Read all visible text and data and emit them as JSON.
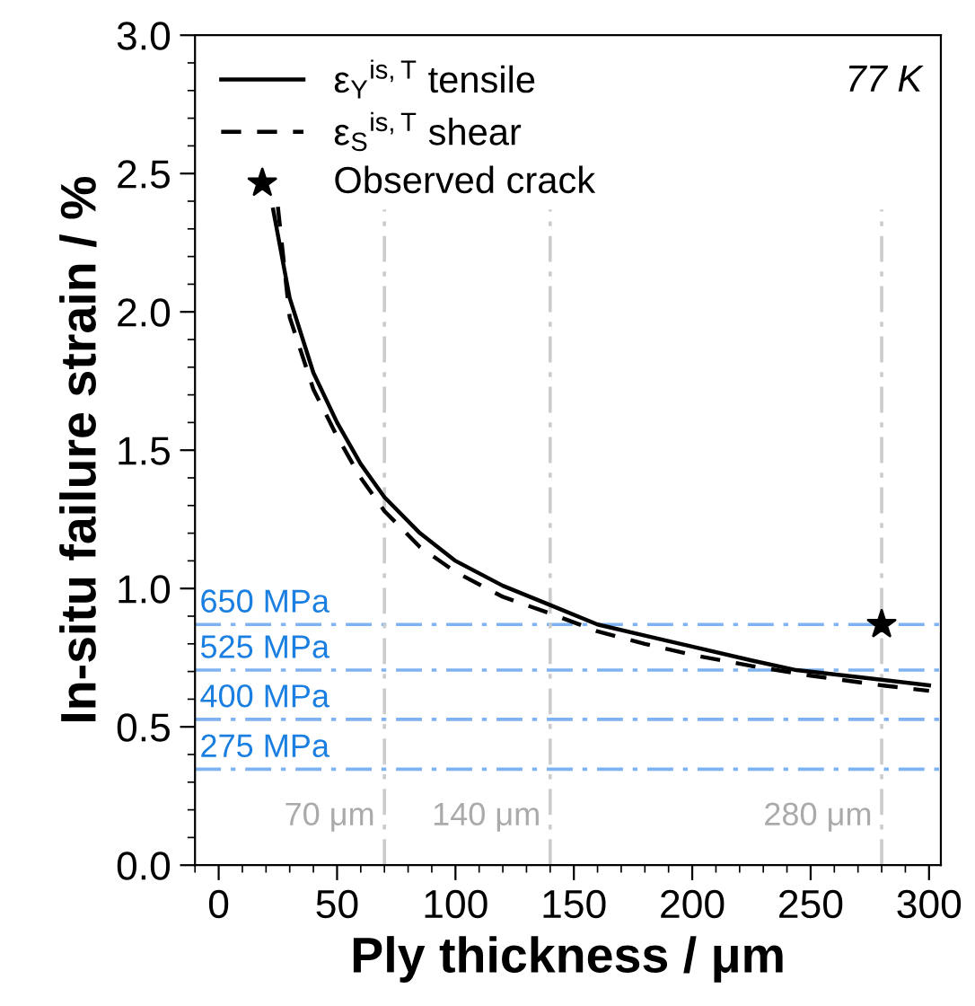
{
  "chart_data": {
    "type": "line",
    "xlabel": "Ply thickness / μm",
    "ylabel": "In-situ failure strain / %",
    "xlim": [
      -10,
      305
    ],
    "xticks": [
      0,
      50,
      100,
      150,
      200,
      250,
      300
    ],
    "ylim": [
      0,
      3.0
    ],
    "yticks": [
      {
        "value": 0,
        "label": "0.0"
      },
      0.5,
      {
        "value": 1,
        "label": "1.0"
      },
      1.5,
      {
        "value": 2,
        "label": "2.0"
      },
      2.5,
      {
        "value": 3,
        "label": "3.0"
      }
    ],
    "grid": false,
    "legend": "top left",
    "annotations": [
      "77 K"
    ],
    "series": [
      {
        "name": "ε$_{Y}$$^{is,T}$ tensile",
        "color": "#000000",
        "line_style": "solid",
        "marker": "none",
        "x": [
          23,
          30,
          40,
          50,
          60,
          70,
          85,
          100,
          120,
          140,
          160,
          180,
          200,
          225,
          244,
          270,
          300
        ],
        "values": [
          2.37,
          2.05,
          1.78,
          1.6,
          1.45,
          1.33,
          1.2,
          1.1,
          1.01,
          0.94,
          0.87,
          0.83,
          0.79,
          0.74,
          0.705,
          0.68,
          0.65
        ]
      },
      {
        "name": "ε$_{S}$$^{is,T}$ shear",
        "color": "#000000",
        "line_style": "dashed",
        "marker": "none",
        "x": [
          25,
          30,
          40,
          50,
          60,
          70,
          85,
          100,
          120,
          140,
          160,
          180,
          200,
          225,
          250,
          280,
          300
        ],
        "values": [
          2.38,
          1.98,
          1.72,
          1.55,
          1.4,
          1.28,
          1.15,
          1.06,
          0.97,
          0.91,
          0.845,
          0.8,
          0.76,
          0.72,
          0.685,
          0.65,
          0.63
        ]
      },
      {
        "name": "Observed crack",
        "type": "scatter",
        "color": "#000000",
        "marker": "star",
        "x": [
          280
        ],
        "values": [
          0.87
        ]
      }
    ],
    "ref_lines": [
      {
        "axis": "y",
        "value": 0.87,
        "label": "650 MPa",
        "color": "#7fb2f0",
        "line_style": "dashdot"
      },
      {
        "axis": "y",
        "value": 0.705,
        "label": "525 MPa",
        "color": "#7fb2f0",
        "line_style": "dashdot"
      },
      {
        "axis": "y",
        "value": 0.527,
        "label": "400 MPa",
        "color": "#7fb2f0",
        "line_style": "dashdot"
      },
      {
        "axis": "y",
        "value": 0.347,
        "label": "275 MPa",
        "color": "#7fb2f0",
        "line_style": "dashdot"
      },
      {
        "axis": "x",
        "value": 70,
        "label": "70 μm",
        "color": "#cccccc",
        "line_style": "dashdot"
      },
      {
        "axis": "x",
        "value": 140,
        "label": "140 μm",
        "color": "#cccccc",
        "line_style": "dashdot"
      },
      {
        "axis": "x",
        "value": 280,
        "label": "280 μm",
        "color": "#cccccc",
        "line_style": "dashdot"
      }
    ]
  }
}
